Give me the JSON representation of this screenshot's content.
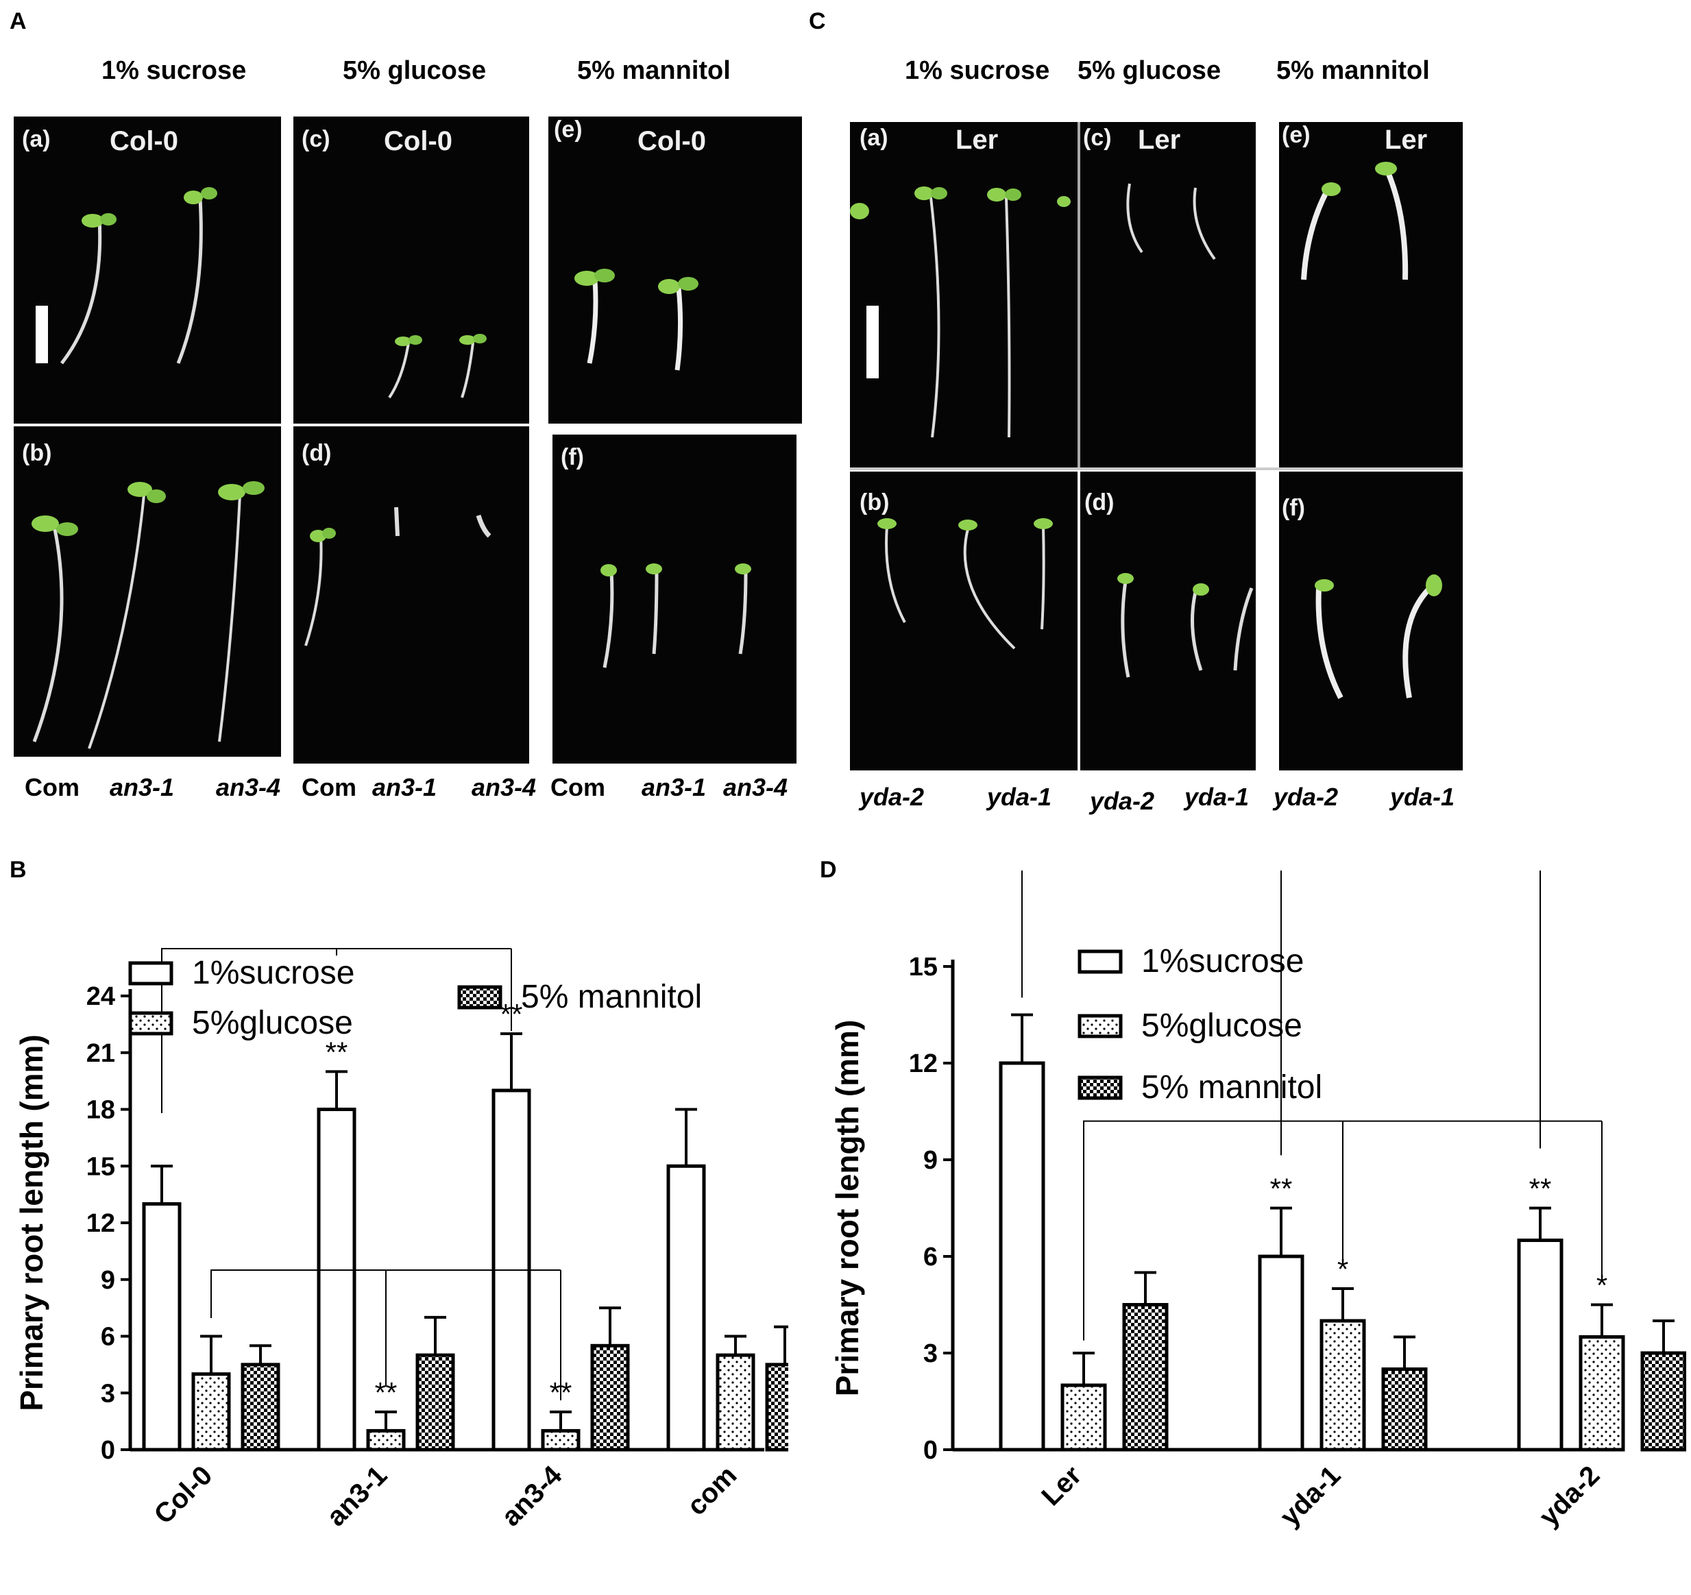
{
  "panels": {
    "A": {
      "letter": "A",
      "conditions": [
        "1% sucrose",
        "5% glucose",
        "5% mannitol"
      ],
      "photos": [
        {
          "tag": "(a)",
          "genotype": "Col-0"
        },
        {
          "tag": "(c)",
          "genotype": "Col-0"
        },
        {
          "tag": "(e)",
          "genotype": "Col-0"
        },
        {
          "tag": "(b)",
          "genotype": ""
        },
        {
          "tag": "(d)",
          "genotype": ""
        },
        {
          "tag": "(f)",
          "genotype": ""
        }
      ],
      "bottom_labels": [
        "Com",
        "an3-1",
        "an3-4",
        "Com",
        "an3-1",
        "an3-4",
        "Com",
        "an3-1",
        "an3-4"
      ]
    },
    "C": {
      "letter": "C",
      "conditions": [
        "1% sucrose",
        "5% glucose",
        "5% mannitol"
      ],
      "photos": [
        {
          "tag": "(a)",
          "genotype": "Ler"
        },
        {
          "tag": "(c)",
          "genotype": "Ler"
        },
        {
          "tag": "(e)",
          "genotype": "Ler"
        },
        {
          "tag": "(b)",
          "genotype": ""
        },
        {
          "tag": "(d)",
          "genotype": ""
        },
        {
          "tag": "(f)",
          "genotype": ""
        }
      ],
      "bottom_labels": [
        "yda-2",
        "yda-1",
        "yda-2",
        "yda-1",
        "yda-2",
        "yda-1"
      ]
    },
    "B": {
      "letter": "B"
    },
    "D": {
      "letter": "D"
    }
  },
  "chart_data": [
    {
      "panel": "B",
      "type": "bar",
      "ylabel": "Primary root length (mm)",
      "xlabel": "",
      "ylim": [
        0,
        24
      ],
      "yticks": [
        0,
        3,
        6,
        9,
        12,
        15,
        18,
        21,
        24
      ],
      "categories": [
        "Col-0",
        "an3-1",
        "an3-4",
        "com"
      ],
      "legend_position": "top",
      "series": [
        {
          "name": "1%sucrose",
          "pattern": "open",
          "values": [
            13,
            18,
            19,
            15
          ],
          "errors": [
            2,
            2,
            3,
            3
          ]
        },
        {
          "name": "5%glucose",
          "pattern": "dots",
          "values": [
            4,
            1,
            1,
            5
          ],
          "errors": [
            2,
            1,
            1,
            1
          ]
        },
        {
          "name": "5% mannitol",
          "pattern": "checker",
          "values": [
            4.5,
            5,
            5.5,
            4.5
          ],
          "errors": [
            1,
            2,
            2,
            2
          ]
        }
      ],
      "significance": [
        {
          "category": 1,
          "series": 0,
          "mark": "**"
        },
        {
          "category": 2,
          "series": 0,
          "mark": "**"
        },
        {
          "category": 1,
          "series": 1,
          "mark": "**"
        },
        {
          "category": 2,
          "series": 1,
          "mark": "**"
        }
      ]
    },
    {
      "panel": "D",
      "type": "bar",
      "ylabel": "Primary root length (mm)",
      "xlabel": "",
      "ylim": [
        0,
        15
      ],
      "yticks": [
        0,
        3,
        6,
        9,
        12,
        15
      ],
      "categories": [
        "Ler",
        "yda-1",
        "yda-2"
      ],
      "legend_position": "top",
      "series": [
        {
          "name": "1%sucrose",
          "pattern": "open",
          "values": [
            12,
            6,
            6.5
          ],
          "errors": [
            1.5,
            1.5,
            1
          ]
        },
        {
          "name": "5%glucose",
          "pattern": "dots",
          "values": [
            2,
            4,
            3.5
          ],
          "errors": [
            1,
            1,
            1
          ]
        },
        {
          "name": "5% mannitol",
          "pattern": "checker",
          "values": [
            4.5,
            2.5,
            3
          ],
          "errors": [
            1,
            1,
            1
          ]
        }
      ],
      "significance": [
        {
          "category": 1,
          "series": 0,
          "mark": "**"
        },
        {
          "category": 2,
          "series": 0,
          "mark": "**"
        },
        {
          "category": 1,
          "series": 1,
          "mark": "*"
        },
        {
          "category": 2,
          "series": 1,
          "mark": "*"
        }
      ]
    }
  ]
}
